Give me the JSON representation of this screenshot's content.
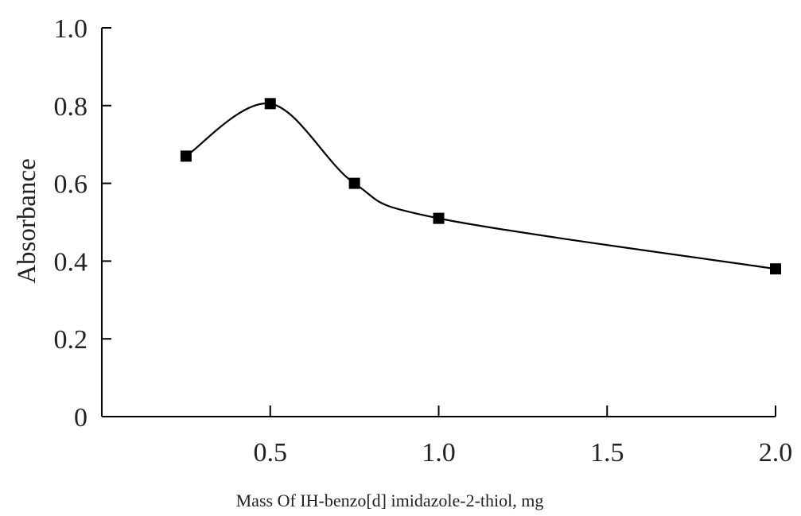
{
  "chart_data": {
    "type": "line",
    "title": "",
    "xlabel": "Mass Of IH-benzo[d] imidazole-2-thiol, mg",
    "ylabel": "Absorbance",
    "x_tick_labels": [
      "0.5",
      "1.0",
      "1.5",
      "2.0"
    ],
    "y_tick_labels": [
      "0",
      "0.2",
      "0.4",
      "0.6",
      "0.8",
      "1.0"
    ],
    "x_tick_values": [
      0.5,
      1.0,
      1.5,
      2.0
    ],
    "y_tick_values": [
      0,
      0.2,
      0.4,
      0.6,
      0.8,
      1.0
    ],
    "xlim": [
      0.0,
      2.0
    ],
    "ylim": [
      0,
      1.0
    ],
    "grid": false,
    "marker": "square",
    "line_color": "#000000",
    "series": [
      {
        "x": [
          0.25,
          0.5,
          0.75,
          1.0,
          2.0
        ],
        "y": [
          0.67,
          0.805,
          0.6,
          0.51,
          0.38
        ]
      }
    ]
  }
}
